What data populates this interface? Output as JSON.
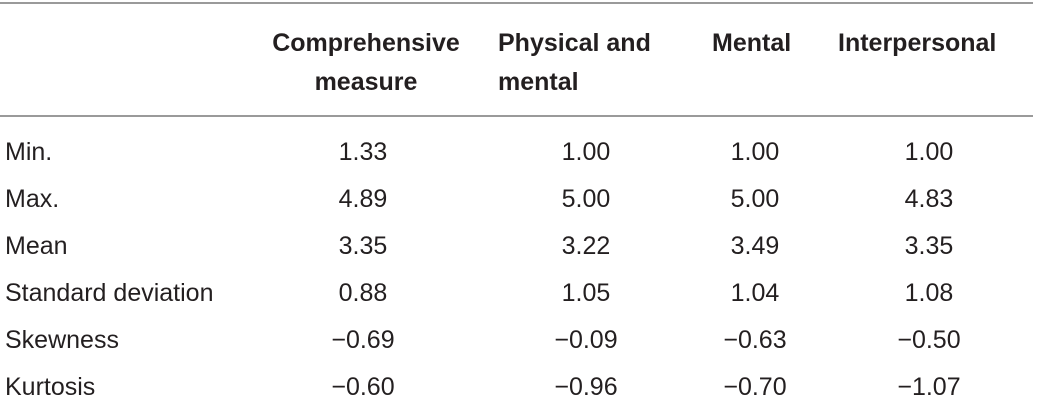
{
  "table": {
    "headers": [
      [
        "Comprehensive",
        "measure"
      ],
      [
        "Physical and",
        "mental"
      ],
      [
        "Mental",
        ""
      ],
      [
        "Interpersonal",
        ""
      ]
    ],
    "rows": [
      {
        "label": "Min.",
        "values": [
          "1.33",
          "1.00",
          "1.00",
          "1.00"
        ]
      },
      {
        "label": "Max.",
        "values": [
          "4.89",
          "5.00",
          "5.00",
          "4.83"
        ]
      },
      {
        "label": "Mean",
        "values": [
          "3.35",
          "3.22",
          "3.49",
          "3.35"
        ]
      },
      {
        "label": "Standard deviation",
        "values": [
          "0.88",
          "1.05",
          "1.04",
          "1.08"
        ]
      },
      {
        "label": "Skewness",
        "values": [
          "−0.69",
          "−0.09",
          "−0.63",
          "−0.50"
        ]
      },
      {
        "label": "Kurtosis",
        "values": [
          "−0.60",
          "−0.96",
          "−0.70",
          "−1.07"
        ]
      }
    ]
  }
}
